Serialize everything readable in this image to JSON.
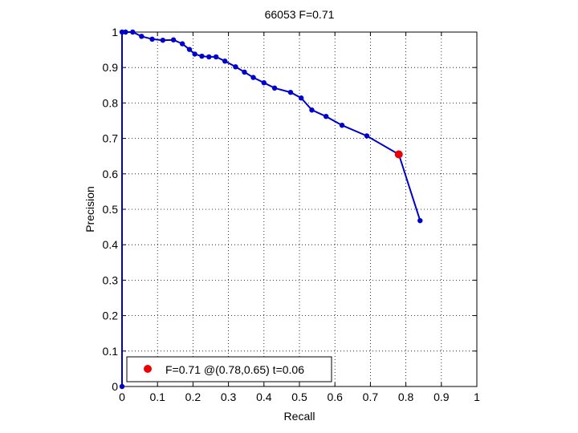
{
  "chart_data": {
    "type": "line",
    "title": "66053 F=0.71",
    "xlabel": "Recall",
    "ylabel": "Precision",
    "xlim": [
      0,
      1
    ],
    "ylim": [
      0,
      1
    ],
    "xticks": [
      "0",
      "0.1",
      "0.2",
      "0.3",
      "0.4",
      "0.5",
      "0.6",
      "0.7",
      "0.8",
      "0.9",
      "1"
    ],
    "yticks": [
      "0",
      "0.1",
      "0.2",
      "0.3",
      "0.4",
      "0.5",
      "0.6",
      "0.7",
      "0.8",
      "0.9",
      "1"
    ],
    "grid": true,
    "legend_position": "bottom-left",
    "series": [
      {
        "color": "#0000cc",
        "points": [
          [
            0.0,
            0.0
          ],
          [
            0.0,
            1.0
          ],
          [
            0.01,
            1.0
          ],
          [
            0.03,
            1.0
          ],
          [
            0.055,
            0.988
          ],
          [
            0.085,
            0.98
          ],
          [
            0.115,
            0.977
          ],
          [
            0.145,
            0.978
          ],
          [
            0.17,
            0.967
          ],
          [
            0.19,
            0.951
          ],
          [
            0.205,
            0.938
          ],
          [
            0.225,
            0.932
          ],
          [
            0.245,
            0.93
          ],
          [
            0.265,
            0.93
          ],
          [
            0.29,
            0.918
          ],
          [
            0.32,
            0.902
          ],
          [
            0.345,
            0.887
          ],
          [
            0.37,
            0.872
          ],
          [
            0.4,
            0.857
          ],
          [
            0.43,
            0.842
          ],
          [
            0.475,
            0.83
          ],
          [
            0.505,
            0.814
          ],
          [
            0.535,
            0.78
          ],
          [
            0.575,
            0.762
          ],
          [
            0.62,
            0.737
          ],
          [
            0.69,
            0.707
          ],
          [
            0.78,
            0.655
          ],
          [
            0.84,
            0.468
          ]
        ]
      }
    ],
    "highlight": {
      "label": "F=0.71 @(0.78,0.65) t=0.06",
      "x": 0.78,
      "y": 0.655,
      "color": "#ee0000"
    }
  }
}
